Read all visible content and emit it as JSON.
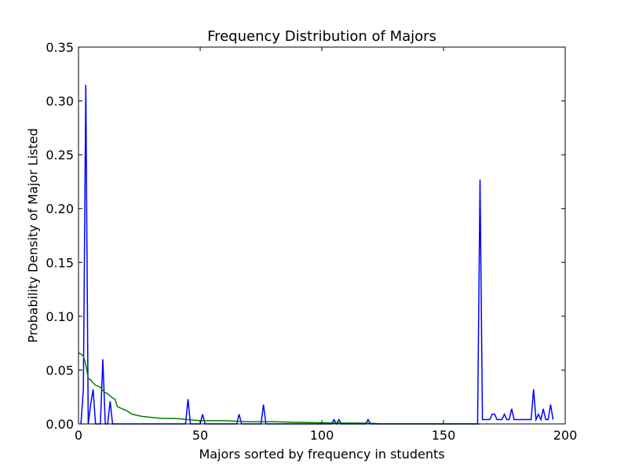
{
  "chart_data": {
    "type": "line",
    "title": "Frequency Distribution of Majors",
    "xlabel": "Majors sorted by frequency in students",
    "ylabel": "Probability Density of Major Listed",
    "xlim": [
      0,
      200
    ],
    "ylim": [
      0,
      0.35
    ],
    "x_ticks": [
      0,
      50,
      100,
      150,
      200
    ],
    "x_tick_labels": [
      "0",
      "50",
      "100",
      "150",
      "200"
    ],
    "y_ticks": [
      0.0,
      0.05,
      0.1,
      0.15,
      0.2,
      0.25,
      0.3,
      0.35
    ],
    "y_tick_labels": [
      "0.00",
      "0.05",
      "0.10",
      "0.15",
      "0.20",
      "0.25",
      "0.30",
      "0.35"
    ],
    "grid": false,
    "legend": null,
    "series": [
      {
        "color": "#0000ff",
        "points": [
          [
            1,
            0.0
          ],
          [
            2,
            0.032
          ],
          [
            3,
            0.315
          ],
          [
            4,
            0.0
          ],
          [
            5,
            0.018
          ],
          [
            6,
            0.032
          ],
          [
            7,
            0.0
          ],
          [
            9,
            0.0
          ],
          [
            10,
            0.06
          ],
          [
            11,
            0.0
          ],
          [
            12,
            0.0
          ],
          [
            13,
            0.021
          ],
          [
            14,
            0.0
          ],
          [
            44,
            0.0
          ],
          [
            45,
            0.023
          ],
          [
            46,
            0.0
          ],
          [
            50,
            0.0
          ],
          [
            51,
            0.009
          ],
          [
            52,
            0.0
          ],
          [
            65,
            0.0
          ],
          [
            66,
            0.009
          ],
          [
            67,
            0.0
          ],
          [
            75,
            0.0
          ],
          [
            76,
            0.018
          ],
          [
            77,
            0.0
          ],
          [
            104,
            0.0
          ],
          [
            105,
            0.004
          ],
          [
            106,
            0.0
          ],
          [
            107,
            0.004
          ],
          [
            108,
            0.0
          ],
          [
            118,
            0.0
          ],
          [
            119,
            0.004
          ],
          [
            120,
            0.0
          ],
          [
            164,
            0.0
          ],
          [
            165,
            0.227
          ],
          [
            166,
            0.004
          ],
          [
            169,
            0.004
          ],
          [
            170,
            0.009
          ],
          [
            171,
            0.009
          ],
          [
            172,
            0.004
          ],
          [
            174,
            0.004
          ],
          [
            175,
            0.009
          ],
          [
            176,
            0.004
          ],
          [
            177,
            0.004
          ],
          [
            178,
            0.014
          ],
          [
            179,
            0.004
          ],
          [
            186,
            0.004
          ],
          [
            187,
            0.032
          ],
          [
            188,
            0.004
          ],
          [
            189,
            0.009
          ],
          [
            190,
            0.004
          ],
          [
            191,
            0.014
          ],
          [
            192,
            0.004
          ],
          [
            193,
            0.004
          ],
          [
            194,
            0.018
          ],
          [
            195,
            0.004
          ]
        ]
      },
      {
        "color": "#008000",
        "points": [
          [
            0,
            0.066
          ],
          [
            1,
            0.065
          ],
          [
            2,
            0.063
          ],
          [
            3,
            0.055
          ],
          [
            4,
            0.042
          ],
          [
            5,
            0.041
          ],
          [
            6,
            0.038
          ],
          [
            7,
            0.036
          ],
          [
            8,
            0.035
          ],
          [
            9,
            0.034
          ],
          [
            10,
            0.031
          ],
          [
            11,
            0.029
          ],
          [
            12,
            0.028
          ],
          [
            13,
            0.026
          ],
          [
            14,
            0.024
          ],
          [
            15,
            0.023
          ],
          [
            16,
            0.016
          ],
          [
            18,
            0.014
          ],
          [
            20,
            0.012
          ],
          [
            22,
            0.009
          ],
          [
            24,
            0.008
          ],
          [
            26,
            0.007
          ],
          [
            30,
            0.006
          ],
          [
            35,
            0.005
          ],
          [
            40,
            0.005
          ],
          [
            45,
            0.004
          ],
          [
            50,
            0.003
          ],
          [
            60,
            0.003
          ],
          [
            70,
            0.002
          ],
          [
            80,
            0.002
          ],
          [
            90,
            0.0015
          ],
          [
            100,
            0.001
          ],
          [
            110,
            0.0008
          ],
          [
            120,
            0.0006
          ],
          [
            125,
            0.0
          ],
          [
            160,
            0.0
          ],
          [
            165,
            0.0
          ]
        ]
      }
    ]
  }
}
